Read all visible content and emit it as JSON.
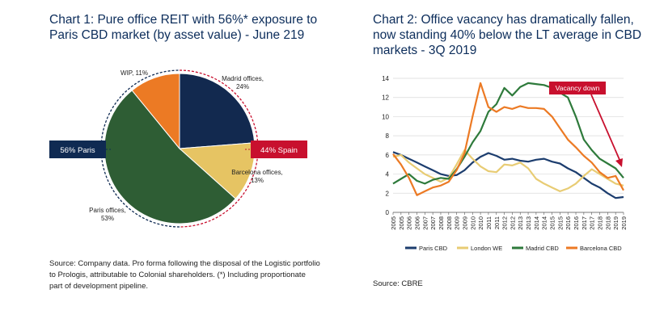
{
  "left": {
    "title": "Chart 1: Pure office REIT with 56%* exposure to Paris CBD market (by asset value) - June 219",
    "source": "Source: Company data. Pro forma following the disposal of the Logistic portfolio to Prologis, attributable to Colonial shareholders. (*) Including proportionate part of development pipeline.",
    "paris_box": "56% Paris",
    "spain_box": "44% Spain",
    "colors": {
      "navy": "#0f2a52",
      "red": "#c8102e"
    }
  },
  "right": {
    "title": "Chart 2: Office vacancy has dramatically fallen, now standing 40% below the LT average in CBD markets - 3Q 2019",
    "source": "Source: CBRE"
  },
  "chart_data": [
    {
      "type": "pie",
      "slices": [
        {
          "label": "Madrid offices, 24%",
          "value": 24,
          "color": "#12294f"
        },
        {
          "label": "Barcelona offices, 13%",
          "value": 13,
          "color": "#e6c463"
        },
        {
          "label": "Paris offices, 53%",
          "value": 53,
          "color": "#2e5d34"
        },
        {
          "label": "WIP, 11%",
          "value": 11,
          "color": "#ec7a24"
        }
      ]
    },
    {
      "type": "line",
      "x_labels": [
        "2005",
        "2005",
        "2006",
        "2006",
        "2007",
        "2007",
        "2008",
        "2008",
        "2009",
        "2009",
        "2010",
        "2010",
        "2011",
        "2011",
        "2012",
        "2012",
        "2013",
        "2013",
        "2014",
        "2014",
        "2015",
        "2015",
        "2016",
        "2016",
        "2017",
        "2017",
        "2018",
        "2018",
        "2019",
        "2019"
      ],
      "ylim": [
        0,
        14
      ],
      "yticks": [
        0,
        2,
        4,
        6,
        8,
        10,
        12,
        14
      ],
      "grid": true,
      "legend_position": "bottom",
      "annotation": "Vacancy down",
      "annotation_color": "#c8102e",
      "series": [
        {
          "name": "Paris CBD",
          "color": "#1c3d6e",
          "values": [
            6.3,
            6.0,
            5.6,
            5.2,
            4.8,
            4.4,
            4.0,
            3.8,
            3.9,
            4.4,
            5.2,
            5.8,
            6.2,
            5.9,
            5.5,
            5.6,
            5.4,
            5.3,
            5.5,
            5.6,
            5.3,
            5.1,
            4.6,
            4.2,
            3.6,
            3.0,
            2.6,
            2.0,
            1.5,
            1.6
          ]
        },
        {
          "name": "London WE",
          "color": "#e8cc74",
          "values": [
            5.8,
            6.0,
            5.2,
            4.6,
            4.0,
            3.6,
            3.2,
            3.6,
            5.0,
            6.5,
            5.6,
            4.8,
            4.3,
            4.2,
            5.0,
            4.9,
            5.2,
            4.6,
            3.5,
            3.0,
            2.6,
            2.2,
            2.5,
            3.0,
            3.8,
            4.5,
            4.0,
            3.5,
            3.0,
            2.8
          ]
        },
        {
          "name": "Madrid CBD",
          "color": "#2e7a3b",
          "values": [
            3.0,
            3.5,
            4.0,
            3.3,
            3.0,
            3.4,
            3.6,
            3.5,
            4.5,
            5.8,
            7.3,
            8.5,
            10.5,
            11.3,
            13.0,
            12.2,
            13.1,
            13.5,
            13.4,
            13.3,
            13.0,
            12.5,
            12.0,
            10.0,
            7.6,
            6.5,
            5.6,
            5.1,
            4.6,
            3.6
          ]
        },
        {
          "name": "Barcelona CBD",
          "color": "#ec7a24",
          "values": [
            6.1,
            5.0,
            3.6,
            1.8,
            2.2,
            2.6,
            2.8,
            3.2,
            4.4,
            6.2,
            10.0,
            13.5,
            11.0,
            10.5,
            11.0,
            10.8,
            11.1,
            10.9,
            10.9,
            10.8,
            10.0,
            8.8,
            7.6,
            6.8,
            5.9,
            5.2,
            4.2,
            3.6,
            3.8,
            2.3
          ]
        }
      ]
    }
  ]
}
